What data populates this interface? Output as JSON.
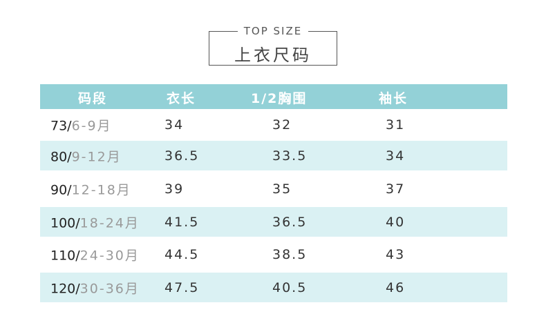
{
  "subtitle": "TOP SIZE",
  "title": "上衣尺码",
  "colors": {
    "header_bg": "#93d1d7",
    "stripe_bg": "#daf1f3",
    "header_text": "#ffffff"
  },
  "table": {
    "headers": [
      "码段",
      "衣长",
      "1/2胸围",
      "袖长"
    ],
    "rows": [
      {
        "size": "73/",
        "age": "6-9月",
        "length": "34",
        "chest": "32",
        "sleeve": "31"
      },
      {
        "size": "80/",
        "age": "9-12月",
        "length": "36.5",
        "chest": "33.5",
        "sleeve": "34"
      },
      {
        "size": "90/",
        "age": "12-18月",
        "length": "39",
        "chest": "35",
        "sleeve": "37"
      },
      {
        "size": "100/",
        "age": "18-24月",
        "length": "41.5",
        "chest": "36.5",
        "sleeve": "40"
      },
      {
        "size": "110/",
        "age": "24-30月",
        "length": "44.5",
        "chest": "38.5",
        "sleeve": "43"
      },
      {
        "size": "120/",
        "age": "30-36月",
        "length": "47.5",
        "chest": "40.5",
        "sleeve": "46"
      }
    ]
  }
}
